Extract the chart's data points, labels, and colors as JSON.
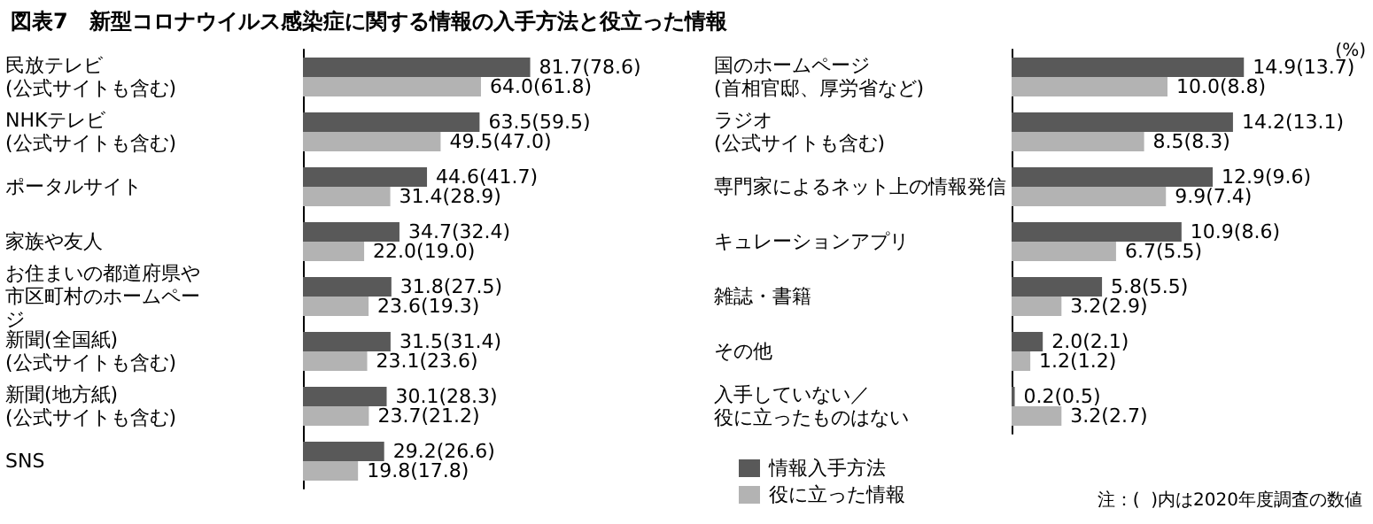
{
  "chart_data": [
    {
      "type": "bar",
      "orientation": "horizontal",
      "title": "図表7　新型コロナウイルス感染症に関する情報の入手方法と役立った情報",
      "categories": [
        "民放テレビ\n(公式サイトも含む)",
        "NHKテレビ\n(公式サイトも含む)",
        "ポータルサイト",
        "家族や友人",
        "お住まいの都道府県や市区町村のホームページ",
        "新聞(全国紙)\n(公式サイトも含む)",
        "新聞(地方紙)\n(公式サイトも含む)",
        "SNS"
      ],
      "series": [
        {
          "color": "#595959",
          "values": [
            81.7,
            63.5,
            44.6,
            34.7,
            31.8,
            31.5,
            30.1,
            29.2
          ],
          "value_labels": [
            "81.7(78.6)",
            "63.5(59.5)",
            "44.6(41.7)",
            "34.7(32.4)",
            "31.8(27.5)",
            "31.5(31.4)",
            "30.1(28.3)",
            "29.2(26.6)"
          ]
        },
        {
          "color": "#b3b3b3",
          "values": [
            64.0,
            49.5,
            31.4,
            22.0,
            23.6,
            23.1,
            23.7,
            19.8
          ],
          "value_labels": [
            "64.0(61.8)",
            "49.5(47.0)",
            "31.4(28.9)",
            "22.0(19.0)",
            "23.6(19.3)",
            "23.1(23.6)",
            "23.7(21.2)",
            "19.8(17.8)"
          ]
        }
      ],
      "legend": false
    },
    {
      "type": "bar",
      "orientation": "horizontal",
      "categories": [
        "国のホームページ\n(首相官邸、厚労省など)",
        "ラジオ\n(公式サイトも含む)",
        "専門家によるネット上の情報発信",
        "キュレーションアプリ",
        "雑誌・書籍",
        "その他",
        "入手していない／役に立ったものはない"
      ],
      "series": [
        {
          "name": "情報入手方法",
          "color": "#595959",
          "values": [
            14.9,
            14.2,
            12.9,
            10.9,
            5.8,
            2.0,
            0.2
          ],
          "value_labels": [
            "14.9(13.7)",
            "14.2(13.1)",
            "12.9(9.6)",
            "10.9(8.6)",
            "5.8(5.5)",
            "2.0(2.1)",
            "0.2(0.5)"
          ]
        },
        {
          "name": "役に立った情報",
          "color": "#b3b3b3",
          "values": [
            10.0,
            8.5,
            9.9,
            6.7,
            3.2,
            1.2,
            3.2
          ],
          "value_labels": [
            "10.0(8.8)",
            "8.5(8.3)",
            "9.9(7.4)",
            "6.7(5.5)",
            "3.2(2.9)",
            "1.2(1.2)",
            "3.2(2.7)"
          ]
        }
      ],
      "legend": "bottom left",
      "annotations": [
        "(%)",
        "注：(  )内は2020年度調査の数値"
      ]
    }
  ]
}
